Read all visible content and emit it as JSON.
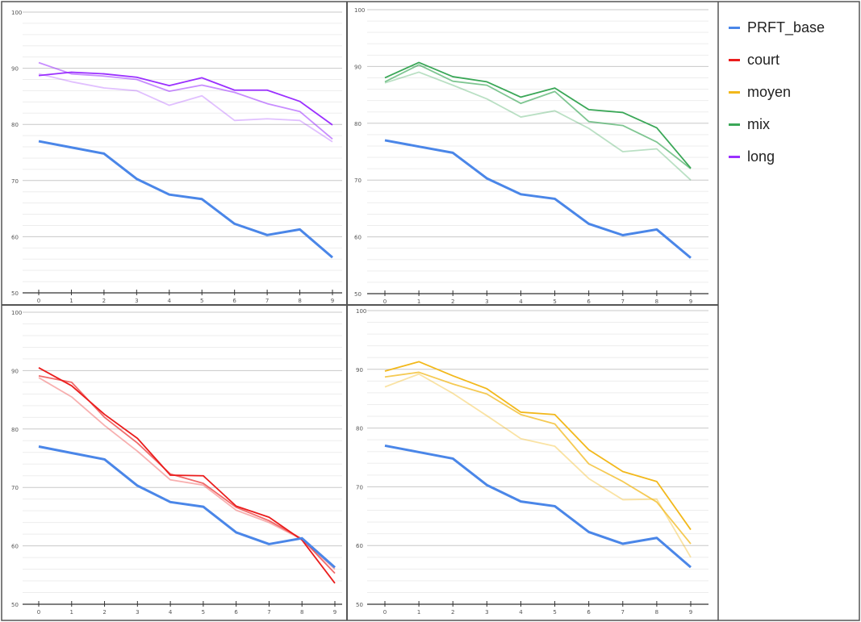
{
  "legend": {
    "items": [
      {
        "label": "PRFT_base",
        "color": "#4a86e8"
      },
      {
        "label": "court",
        "color": "#ea1c1c"
      },
      {
        "label": "moyen",
        "color": "#f2b81b"
      },
      {
        "label": "mix",
        "color": "#3aa757"
      },
      {
        "label": "long",
        "color": "#9b30ff"
      }
    ]
  },
  "chart_data": [
    {
      "type": "line",
      "ylim": [
        50,
        100
      ],
      "yticks": [
        50,
        60,
        70,
        80,
        90,
        100
      ],
      "x": [
        0,
        1,
        2,
        3,
        4,
        5,
        6,
        7,
        8,
        9
      ],
      "base": {
        "color": "#4a86e8",
        "values": [
          77,
          75.9,
          74.8,
          70.3,
          67.5,
          66.7,
          62.3,
          60.3,
          61.3,
          56.3
        ]
      },
      "series": [
        {
          "color": "#9b30ff",
          "opacity": 1.0,
          "values": [
            88.7,
            89.3,
            89.0,
            88.4,
            86.9,
            88.3,
            86.1,
            86.1,
            84.1,
            79.9
          ]
        },
        {
          "color": "#9b30ff",
          "opacity": 0.55,
          "values": [
            91.0,
            89.0,
            88.6,
            88.0,
            85.9,
            87.0,
            85.7,
            83.7,
            82.3,
            77.4
          ]
        },
        {
          "color": "#9b30ff",
          "opacity": 0.3,
          "values": [
            89.0,
            87.6,
            86.5,
            86.0,
            83.4,
            85.1,
            80.7,
            81.0,
            80.7,
            76.9
          ]
        }
      ]
    },
    {
      "type": "line",
      "ylim": [
        50,
        100
      ],
      "yticks": [
        50,
        60,
        70,
        80,
        90,
        100
      ],
      "x": [
        0,
        1,
        2,
        3,
        4,
        5,
        6,
        7,
        8,
        9
      ],
      "base": {
        "color": "#4a86e8",
        "values": [
          77,
          75.9,
          74.8,
          70.3,
          67.5,
          66.7,
          62.3,
          60.3,
          61.3,
          56.3
        ]
      },
      "series": [
        {
          "color": "#3aa757",
          "opacity": 1.0,
          "values": [
            88.0,
            90.7,
            88.2,
            87.3,
            84.6,
            86.2,
            82.4,
            81.9,
            79.2,
            72.1
          ]
        },
        {
          "color": "#3aa757",
          "opacity": 0.65,
          "values": [
            87.3,
            90.3,
            87.4,
            86.7,
            83.5,
            85.6,
            80.3,
            79.6,
            76.7,
            72.0
          ]
        },
        {
          "color": "#3aa757",
          "opacity": 0.35,
          "values": [
            87.1,
            89.0,
            86.7,
            84.3,
            81.1,
            82.2,
            79.1,
            75.0,
            75.5,
            70.0
          ]
        }
      ]
    },
    {
      "type": "line",
      "ylim": [
        50,
        100
      ],
      "yticks": [
        50,
        60,
        70,
        80,
        90,
        100
      ],
      "x": [
        0,
        1,
        2,
        3,
        4,
        5,
        6,
        7,
        8,
        9
      ],
      "base": {
        "color": "#4a86e8",
        "values": [
          77,
          75.9,
          74.8,
          70.3,
          67.5,
          66.7,
          62.3,
          60.3,
          61.3,
          56.3
        ]
      },
      "series": [
        {
          "color": "#ea1c1c",
          "opacity": 1.0,
          "values": [
            90.5,
            87.4,
            82.5,
            78.4,
            72.1,
            72.0,
            66.8,
            64.9,
            61.0,
            53.6
          ]
        },
        {
          "color": "#ea1c1c",
          "opacity": 0.65,
          "values": [
            89.1,
            88.0,
            82.0,
            77.6,
            72.3,
            70.7,
            66.6,
            64.3,
            61.2,
            55.3
          ]
        },
        {
          "color": "#ea1c1c",
          "opacity": 0.35,
          "values": [
            88.8,
            85.5,
            80.6,
            76.2,
            71.3,
            70.4,
            66.1,
            64.0,
            61.1,
            56.0
          ]
        }
      ]
    },
    {
      "type": "line",
      "ylim": [
        50,
        100
      ],
      "yticks": [
        50,
        60,
        70,
        80,
        90,
        100
      ],
      "x": [
        0,
        1,
        2,
        3,
        4,
        5,
        6,
        7,
        8,
        9
      ],
      "base": {
        "color": "#4a86e8",
        "values": [
          77,
          75.9,
          74.8,
          70.3,
          67.5,
          66.7,
          62.3,
          60.3,
          61.3,
          56.3
        ]
      },
      "series": [
        {
          "color": "#f2b81b",
          "opacity": 1.0,
          "values": [
            89.7,
            91.3,
            88.9,
            86.7,
            82.7,
            82.3,
            76.3,
            72.6,
            70.9,
            62.7
          ]
        },
        {
          "color": "#f2b81b",
          "opacity": 0.75,
          "values": [
            88.7,
            89.5,
            87.5,
            85.8,
            82.3,
            80.7,
            73.9,
            70.9,
            67.4,
            60.3
          ]
        },
        {
          "color": "#f2b81b",
          "opacity": 0.4,
          "values": [
            87.0,
            89.2,
            85.9,
            82.1,
            78.2,
            76.9,
            71.4,
            67.8,
            67.9,
            58.0
          ]
        }
      ]
    }
  ]
}
